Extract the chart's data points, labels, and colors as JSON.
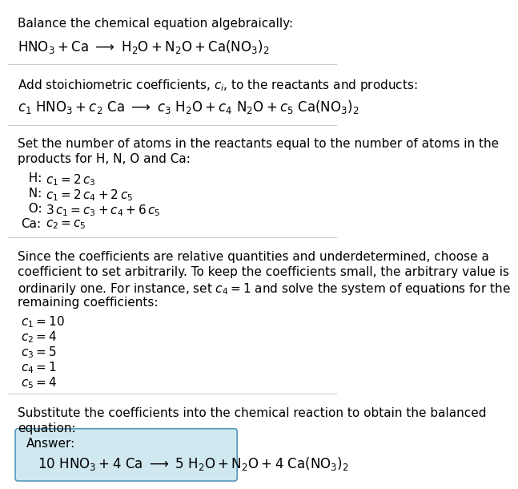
{
  "bg_color": "#ffffff",
  "text_color": "#000000",
  "box_color": "#d0e8f0",
  "box_edge_color": "#5599bb",
  "title1": "Balance the chemical equation algebraically:",
  "title2_pre": "Add stoichiometric coefficients, ",
  "title2_post": ", to the reactants and products:",
  "title3a": "Set the number of atoms in the reactants equal to the number of atoms in the",
  "title3b": "products for H, N, O and Ca:",
  "title4_lines": [
    "Since the coefficients are relative quantities and underdetermined, choose a",
    "coefficient to set arbitrarily. To keep the coefficients small, the arbitrary value is",
    "ordinarily one. For instance, set c₄ = 1 and solve the system of equations for the",
    "remaining coefficients:"
  ],
  "title5a": "Substitute the coefficients into the chemical reaction to obtain the balanced",
  "title5b": "equation:",
  "answer_label": "Answer:",
  "line_color": "#cccccc",
  "font_size": 11
}
